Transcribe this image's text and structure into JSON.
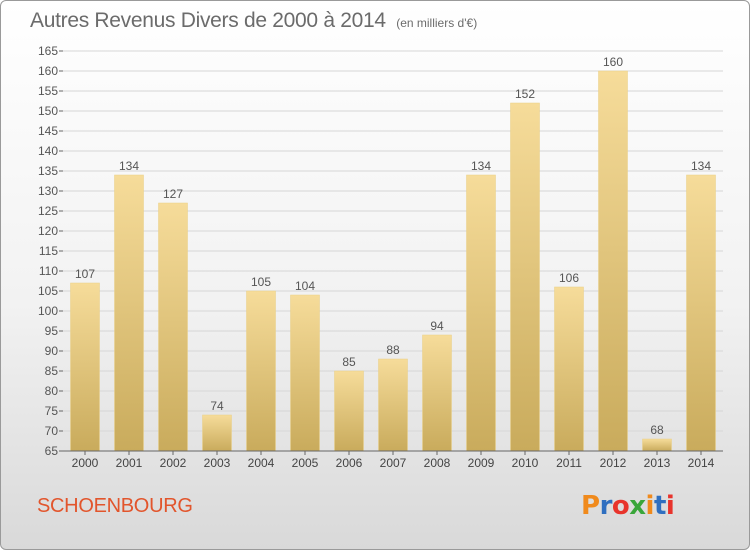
{
  "header": {
    "title": "Autres Revenus Divers de 2000 à 2014",
    "unit": "(en milliers d'€)"
  },
  "footer": {
    "commune": "SCHOENBOURG",
    "logo_text": "Proxiti",
    "logo_colors": [
      "#f08a1c",
      "#2f6fc0",
      "#e8342c",
      "#3aa63a",
      "#f08a1c",
      "#2f6fc0",
      "#e8342c"
    ]
  },
  "chart_data": {
    "type": "bar",
    "title": "Autres Revenus Divers de 2000 à 2014",
    "subtitle": "(en milliers d'€)",
    "categories": [
      "2000",
      "2001",
      "2002",
      "2003",
      "2004",
      "2005",
      "2006",
      "2007",
      "2008",
      "2009",
      "2010",
      "2011",
      "2012",
      "2013",
      "2014"
    ],
    "values": [
      107,
      134,
      127,
      74,
      105,
      104,
      85,
      88,
      94,
      134,
      152,
      106,
      160,
      68,
      134
    ],
    "xlabel": "",
    "ylabel": "",
    "ylim": [
      65,
      165
    ],
    "ytick_step": 5,
    "grid": true,
    "bar_color_light": "#f6dc9a",
    "bar_color_dark": "#c9ab5c"
  }
}
